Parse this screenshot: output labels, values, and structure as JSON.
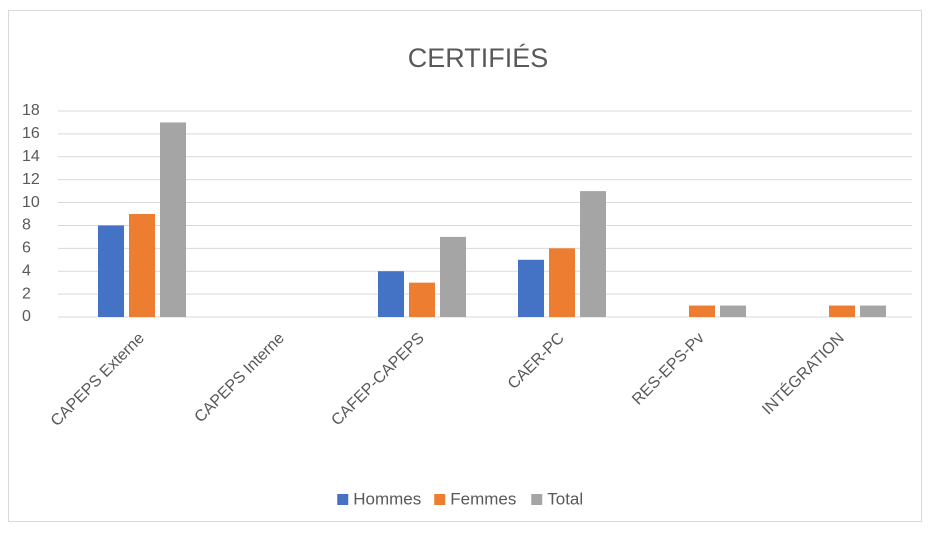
{
  "chart_data": {
    "type": "bar",
    "title": "CERTIFIÉS",
    "categories": [
      "CAPEPS Externe",
      "CAPEPS Interne",
      "CAFEP-CAPEPS",
      "CAER-PC",
      "RES-EPS-Pv",
      "INTÉGRATION"
    ],
    "series": [
      {
        "name": "Hommes",
        "color": "#4472c4",
        "values": [
          8,
          0,
          4,
          5,
          0,
          0
        ]
      },
      {
        "name": "Femmes",
        "color": "#ed7d31",
        "values": [
          9,
          0,
          3,
          6,
          1,
          1
        ]
      },
      {
        "name": "Total",
        "color": "#a5a5a5",
        "values": [
          17,
          0,
          7,
          11,
          1,
          1
        ]
      }
    ],
    "ylim": [
      0,
      18
    ],
    "yticks": [
      0,
      2,
      4,
      6,
      8,
      10,
      12,
      14,
      16,
      18
    ],
    "grid": true,
    "legend": "bottom"
  }
}
